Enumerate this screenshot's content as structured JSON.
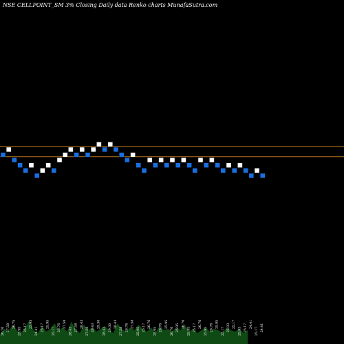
{
  "chart_data": {
    "type": "renko",
    "title": "NSE CELLPOINT_SM 3% Closing Daily data  Renko  charts MunafaSutra.com",
    "colors": {
      "background": "#000000",
      "up_brick": "#ffffff",
      "down_brick": "#1a6fe0",
      "reference_line": "#b8741a",
      "volume_area": "#0f4a14"
    },
    "reference_levels": [
      109,
      107
    ],
    "bricks": [
      {
        "level": 108,
        "dir": "down"
      },
      {
        "level": 109,
        "dir": "up"
      },
      {
        "level": 107,
        "dir": "down"
      },
      {
        "level": 106,
        "dir": "down"
      },
      {
        "level": 105,
        "dir": "down"
      },
      {
        "level": 106,
        "dir": "up"
      },
      {
        "level": 104,
        "dir": "down"
      },
      {
        "level": 105,
        "dir": "up"
      },
      {
        "level": 106,
        "dir": "up"
      },
      {
        "level": 105,
        "dir": "down"
      },
      {
        "level": 107,
        "dir": "up"
      },
      {
        "level": 108,
        "dir": "up"
      },
      {
        "level": 109,
        "dir": "up"
      },
      {
        "level": 108,
        "dir": "down"
      },
      {
        "level": 109,
        "dir": "up"
      },
      {
        "level": 108,
        "dir": "down"
      },
      {
        "level": 109,
        "dir": "up"
      },
      {
        "level": 110,
        "dir": "up"
      },
      {
        "level": 109,
        "dir": "down"
      },
      {
        "level": 110,
        "dir": "up"
      },
      {
        "level": 109,
        "dir": "down"
      },
      {
        "level": 108,
        "dir": "down"
      },
      {
        "level": 107,
        "dir": "down"
      },
      {
        "level": 108,
        "dir": "up"
      },
      {
        "level": 106,
        "dir": "down"
      },
      {
        "level": 105,
        "dir": "down"
      },
      {
        "level": 107,
        "dir": "up"
      },
      {
        "level": 106,
        "dir": "down"
      },
      {
        "level": 107,
        "dir": "up"
      },
      {
        "level": 106,
        "dir": "down"
      },
      {
        "level": 107,
        "dir": "up"
      },
      {
        "level": 106,
        "dir": "down"
      },
      {
        "level": 107,
        "dir": "up"
      },
      {
        "level": 106,
        "dir": "down"
      },
      {
        "level": 105,
        "dir": "down"
      },
      {
        "level": 107,
        "dir": "up"
      },
      {
        "level": 106,
        "dir": "down"
      },
      {
        "level": 107,
        "dir": "up"
      },
      {
        "level": 106,
        "dir": "down"
      },
      {
        "level": 105,
        "dir": "down"
      },
      {
        "level": 106,
        "dir": "up"
      },
      {
        "level": 105,
        "dir": "down"
      },
      {
        "level": 106,
        "dir": "up"
      },
      {
        "level": 105,
        "dir": "down"
      },
      {
        "level": 104,
        "dir": "down"
      },
      {
        "level": 105,
        "dir": "up"
      },
      {
        "level": 104,
        "dir": "down"
      }
    ],
    "brick_labels": [
      "26.76",
      "27.58",
      "26.75",
      "25.95",
      "25.17",
      "25.93",
      "24.41",
      "25.17",
      "25.95",
      "25.17",
      "26.76",
      "27.58",
      "28.43",
      "27.58",
      "28.43",
      "27.58",
      "28.43",
      "29.30",
      "28.43",
      "29.30",
      "28.43",
      "27.58",
      "26.76",
      "27.58",
      "25.95",
      "25.17",
      "26.76",
      "25.95",
      "26.76",
      "25.95",
      "26.76",
      "25.95",
      "26.76",
      "25.95",
      "25.17",
      "26.76",
      "25.95",
      "26.76",
      "25.95",
      "25.17",
      "25.93",
      "25.17",
      "25.93",
      "25.17",
      "24.41",
      "25.17",
      "24.41"
    ],
    "volume_profile": [
      0.35,
      0.55,
      0.45,
      0.7,
      0.5,
      0.4,
      0.6,
      0.85,
      0.5,
      0.4,
      0.65,
      0.45,
      0.55,
      0.75,
      0.5,
      0.6,
      0.45,
      0.8,
      0.55,
      0.4,
      0.7,
      0.5,
      0.6,
      0.45,
      0.55,
      0.65,
      0.5,
      0.4,
      0.75,
      0.55,
      0.45,
      0.6,
      0.5,
      0.7,
      0.55,
      0.45,
      0.6,
      0.4,
      0.65,
      0.5,
      0.55,
      0.45,
      0.6,
      0.5,
      0.7,
      0.45,
      0.55,
      0.4,
      0.5,
      0.6,
      0.45,
      0.55,
      0.5,
      0.4,
      0.6,
      0.5,
      0.45,
      0.55,
      0.4,
      0.5
    ]
  }
}
